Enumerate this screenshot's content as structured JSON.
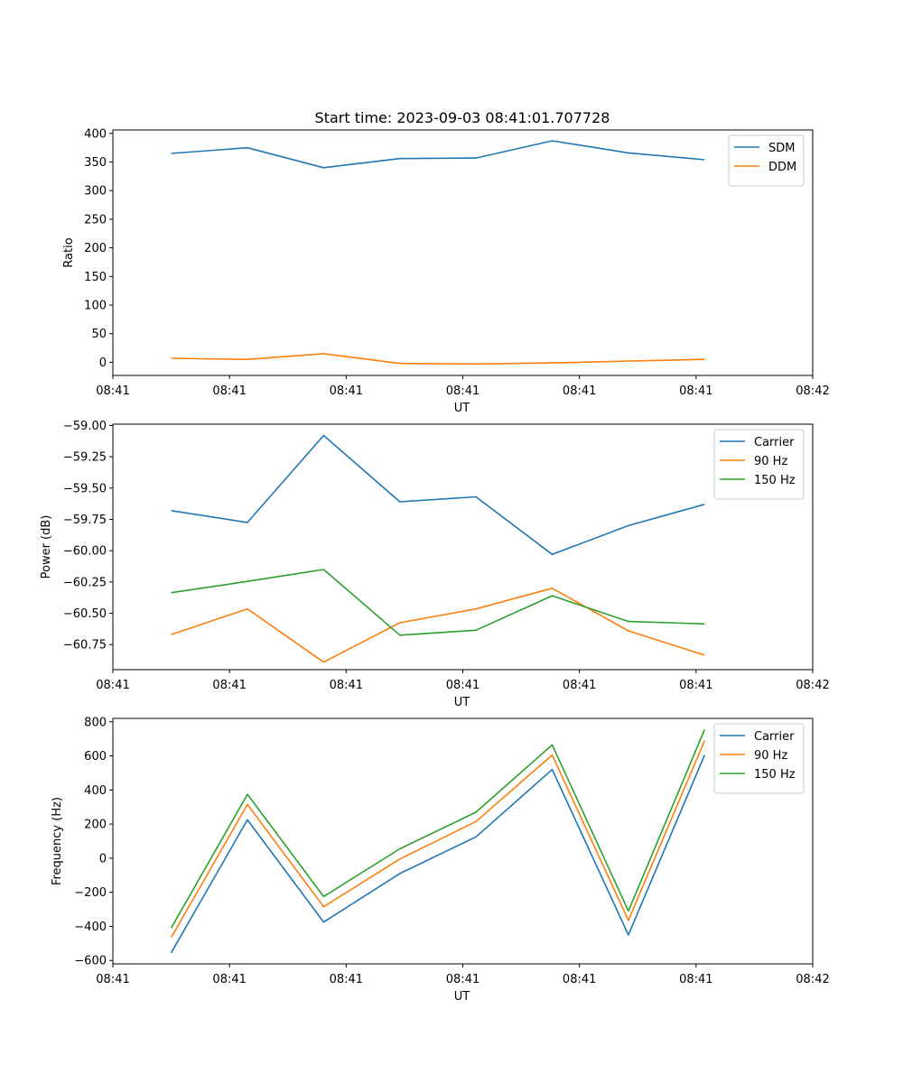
{
  "title": "Start time: 2023-09-03 08:41:01.707728",
  "colors": {
    "Carrier": "#1f77b4",
    "SDM": "#1f77b4",
    "DDM": "#ff7f0e",
    "90 Hz": "#ff7f0e",
    "150 Hz": "#2ca02c"
  },
  "chart_data": [
    {
      "type": "line",
      "title": "Start time: 2023-09-03 08:41:01.707728",
      "xlabel": "UT",
      "ylabel": "Ratio",
      "xlim": [
        0,
        9
      ],
      "ylim": [
        -23,
        406
      ],
      "x_ticks": [
        0,
        1.5,
        3,
        4.5,
        6,
        7.5,
        9
      ],
      "x_tick_labels": [
        "08:41",
        "08:41",
        "08:41",
        "08:41",
        "08:41",
        "08:41",
        "08:42"
      ],
      "y_ticks": [
        0,
        50,
        100,
        150,
        200,
        250,
        300,
        350,
        400
      ],
      "y_tick_labels": [
        "0",
        "50",
        "100",
        "150",
        "200",
        "250",
        "300",
        "350",
        "400"
      ],
      "x": [
        0.75,
        1.73,
        2.71,
        3.69,
        4.67,
        5.65,
        6.63,
        7.61
      ],
      "legend_position": "top-right",
      "series": [
        {
          "name": "SDM",
          "values": [
            365,
            375,
            340,
            356,
            357,
            387,
            366,
            354
          ]
        },
        {
          "name": "DDM",
          "values": [
            7,
            5,
            15,
            -2,
            -3,
            -1,
            2,
            5
          ]
        }
      ]
    },
    {
      "type": "line",
      "title": "",
      "xlabel": "UT",
      "ylabel": "Power (dB)",
      "xlim": [
        0,
        9
      ],
      "ylim": [
        -60.95,
        -58.99
      ],
      "x_ticks": [
        0,
        1.5,
        3,
        4.5,
        6,
        7.5,
        9
      ],
      "x_tick_labels": [
        "08:41",
        "08:41",
        "08:41",
        "08:41",
        "08:41",
        "08:41",
        "08:42"
      ],
      "y_ticks": [
        -59.0,
        -59.25,
        -59.5,
        -59.75,
        -60.0,
        -60.25,
        -60.5,
        -60.75
      ],
      "y_tick_labels": [
        "−59.00",
        "−59.25",
        "−59.50",
        "−59.75",
        "−60.00",
        "−60.25",
        "−60.50",
        "−60.75"
      ],
      "x": [
        0.75,
        1.73,
        2.71,
        3.69,
        4.67,
        5.65,
        6.63,
        7.61
      ],
      "legend_position": "top-right",
      "series": [
        {
          "name": "Carrier",
          "values": [
            -59.68,
            -59.775,
            -59.08,
            -59.61,
            -59.57,
            -60.03,
            -59.8,
            -59.63
          ]
        },
        {
          "name": "90 Hz",
          "values": [
            -60.67,
            -60.465,
            -60.89,
            -60.575,
            -60.465,
            -60.3,
            -60.64,
            -60.835
          ]
        },
        {
          "name": "150 Hz",
          "values": [
            -60.335,
            -60.245,
            -60.15,
            -60.675,
            -60.635,
            -60.36,
            -60.565,
            -60.585
          ]
        }
      ]
    },
    {
      "type": "line",
      "title": "",
      "xlabel": "UT",
      "ylabel": "Frequency (Hz)",
      "xlim": [
        0,
        9
      ],
      "ylim": [
        -620,
        820
      ],
      "x_ticks": [
        0,
        1.5,
        3,
        4.5,
        6,
        7.5,
        9
      ],
      "x_tick_labels": [
        "08:41",
        "08:41",
        "08:41",
        "08:41",
        "08:41",
        "08:41",
        "08:42"
      ],
      "y_ticks": [
        -600,
        -400,
        -200,
        0,
        200,
        400,
        600,
        800
      ],
      "y_tick_labels": [
        "−600",
        "−400",
        "−200",
        "0",
        "200",
        "400",
        "600",
        "800"
      ],
      "x": [
        0.75,
        1.73,
        2.71,
        3.69,
        4.67,
        5.65,
        6.63,
        7.61
      ],
      "legend_position": "top-right",
      "series": [
        {
          "name": "Carrier",
          "values": [
            -555,
            225,
            -375,
            -90,
            125,
            520,
            -450,
            605
          ]
        },
        {
          "name": "90 Hz",
          "values": [
            -465,
            315,
            -285,
            -5,
            215,
            605,
            -365,
            690
          ]
        },
        {
          "name": "150 Hz",
          "values": [
            -410,
            375,
            -225,
            55,
            270,
            665,
            -310,
            755
          ]
        }
      ]
    }
  ]
}
